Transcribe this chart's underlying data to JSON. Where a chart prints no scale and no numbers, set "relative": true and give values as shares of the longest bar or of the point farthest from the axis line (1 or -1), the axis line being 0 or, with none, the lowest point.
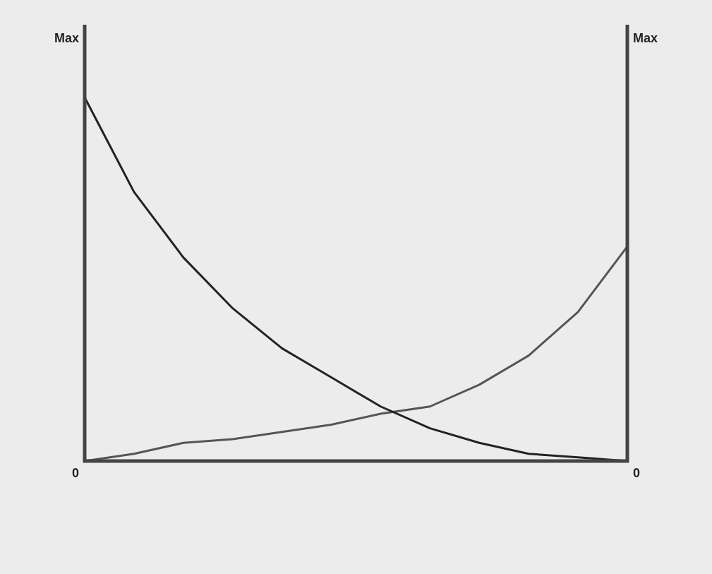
{
  "chart_data": {
    "type": "line",
    "relative": true,
    "categories": [
      null,
      null,
      null,
      null,
      null,
      null,
      null,
      null,
      null,
      null,
      null,
      null
    ],
    "series": [
      {
        "color": "#222222",
        "values": [
          1,
          0.74,
          0.56,
          0.42,
          0.31,
          0.23,
          0.15,
          0.09,
          0.05,
          0.02,
          0.01,
          0
        ]
      },
      {
        "color": "#555555",
        "values": [
          0,
          0.02,
          0.05,
          0.06,
          0.08,
          0.1,
          0.13,
          0.15,
          0.21,
          0.29,
          0.41,
          0.59
        ]
      }
    ],
    "annotations": [
      "Max",
      "0",
      "Max",
      "0"
    ],
    "marker": "none",
    "line_style": "solid"
  }
}
